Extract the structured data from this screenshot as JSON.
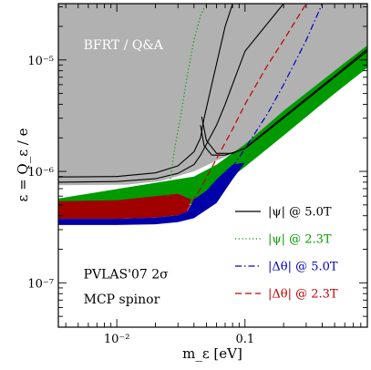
{
  "chart_data": {
    "type": "line",
    "xlabel": "m_ε [eV]",
    "ylabel": "ε = Q_ε / e",
    "xscale": "log",
    "yscale": "log",
    "xlim": [
      0.0035,
      0.9
    ],
    "ylim": [
      4e-08,
      3.2e-05
    ],
    "x_ticks": [
      {
        "value": 0.01,
        "label": "10⁻²"
      },
      {
        "value": 0.1,
        "label": "0.1"
      }
    ],
    "y_ticks": [
      {
        "value": 1e-07,
        "label": "10⁻⁷"
      },
      {
        "value": 1e-06,
        "label": "10⁻⁶"
      },
      {
        "value": 1e-05,
        "label": "10⁻⁵"
      }
    ],
    "annotations": [
      {
        "text": "BFRT / Q&A",
        "x": 0.0055,
        "y": 1.25e-05
      },
      {
        "text": "PVLAS'07 2σ",
        "x": 0.0055,
        "y": 1.1e-07
      },
      {
        "text": "MCP spinor",
        "x": 0.0055,
        "y": 6.5e-08
      }
    ],
    "colors": {
      "gray_region": "#b1b1b1",
      "green_region": "#009a00",
      "red_region": "#a00000",
      "blue_region": "#0000a8",
      "black_line": "#000000",
      "green_line": "#009a00",
      "blue_line": "#0000c0",
      "red_line": "#c00000"
    },
    "regions": [
      {
        "name": "BFRT / Q&A",
        "color": "#b1b1b1",
        "x": [
          0.0035,
          0.012,
          0.022,
          0.04,
          0.06,
          0.1,
          0.2,
          0.5,
          0.9,
          0.9,
          0.0035
        ],
        "y": [
          7.5e-07,
          7.6e-07,
          8.2e-07,
          1e-06,
          1.25e-06,
          1.6e-06,
          3e-06,
          7e-06,
          1.2e-05,
          3.2e-05,
          3.2e-05
        ]
      },
      {
        "name": "|ψ| @ 2.3T",
        "color": "#009a00",
        "x": [
          0.0035,
          0.01,
          0.02,
          0.03,
          0.04,
          0.06,
          0.1,
          0.2,
          0.5,
          0.9,
          0.9,
          0.5,
          0.2,
          0.1,
          0.06,
          0.04,
          0.0035
        ],
        "y": [
          4.4e-07,
          4.4e-07,
          4.5e-07,
          4.7e-07,
          5.2e-07,
          7e-07,
          1.1e-06,
          2.1e-06,
          5e-06,
          8.5e-06,
          1.35e-05,
          8e-06,
          3.5e-06,
          1.75e-06,
          1.15e-06,
          9e-07,
          5.7e-07
        ]
      },
      {
        "name": "|Δθ| @ 2.3T",
        "color": "#a00000",
        "x": [
          0.0035,
          0.01,
          0.02,
          0.03,
          0.035,
          0.038,
          0.03,
          0.02,
          0.01,
          0.0035
        ],
        "y": [
          3.75e-07,
          3.75e-07,
          3.85e-07,
          4.05e-07,
          4.25e-07,
          5.6e-07,
          6.3e-07,
          6e-07,
          5.5e-07,
          5.4e-07
        ]
      },
      {
        "name": "|Δθ| @ 5.0T",
        "color": "#0000a8",
        "x": [
          0.0035,
          0.01,
          0.02,
          0.03,
          0.04,
          0.06,
          0.08,
          0.1,
          0.08,
          0.06,
          0.05,
          0.04,
          0.035,
          0.03,
          0.02,
          0.01,
          0.0035
        ],
        "y": [
          3.3e-07,
          3.3e-07,
          3.35e-07,
          3.5e-07,
          3.8e-07,
          5.2e-07,
          8.5e-07,
          1.2e-06,
          1.15e-06,
          8.5e-07,
          6.7e-07,
          5.6e-07,
          4.3e-07,
          4.05e-07,
          3.85e-07,
          3.75e-07,
          3.75e-07
        ]
      }
    ],
    "series": [
      {
        "name": "|ψ| @ 5.0T",
        "style": "solid",
        "color": "#000000",
        "segments": [
          {
            "x": [
              0.0035,
              0.01,
              0.02,
              0.03,
              0.04,
              0.045,
              0.05,
              0.06,
              0.07,
              0.1,
              0.2,
              0.5,
              0.9
            ],
            "y": [
              8e-07,
              8.1e-07,
              8.6e-07,
              9.6e-07,
              1.15e-06,
              1.4e-06,
              1.75e-06,
              2.6e-06,
              4e-06,
              1.2e-05,
              3.2e-05,
              3.2e-05,
              3.2e-05
            ]
          },
          {
            "x": [
              0.0035,
              0.01,
              0.02,
              0.03,
              0.04,
              0.045,
              0.048,
              0.055,
              0.07,
              0.08
            ],
            "y": [
              8.9e-07,
              9e-07,
              9.7e-07,
              1.12e-06,
              1.5e-06,
              2e-06,
              3e-06,
              6e-06,
              2e-05,
              3.2e-05
            ]
          },
          {
            "x": [
              0.045,
              0.048,
              0.055,
              0.07,
              0.1,
              0.2,
              0.5,
              0.9
            ],
            "y": [
              2.6e-06,
              1.7e-06,
              1.4e-06,
              1.4e-06,
              1.6e-06,
              3e-06,
              7e-06,
              1.2e-05
            ]
          },
          {
            "x": [
              0.046,
              0.05,
              0.06,
              0.08,
              0.1,
              0.2,
              0.5,
              0.9
            ],
            "y": [
              3.1e-06,
              1.9e-06,
              1.45e-06,
              1.45e-06,
              1.62e-06,
              3.1e-06,
              7.2e-06,
              1.25e-05
            ]
          }
        ]
      },
      {
        "name": "|ψ| @ 2.3T",
        "style": "dotted",
        "color": "#009a00",
        "segments": [
          {
            "x": [
              0.025,
              0.026,
              0.028,
              0.032,
              0.036,
              0.04,
              0.045,
              0.05
            ],
            "y": [
              6e-07,
              8e-07,
              1.5e-06,
              3.5e-06,
              8e-06,
              1.5e-05,
              2.5e-05,
              3.2e-05
            ]
          }
        ]
      },
      {
        "name": "|Δθ| @ 5.0T",
        "style": "dashdot",
        "color": "#0000c0",
        "segments": [
          {
            "x": [
              0.06,
              0.08,
              0.1,
              0.15,
              0.2,
              0.3,
              0.4
            ],
            "y": [
              7e-07,
              1.1e-06,
              1.6e-06,
              3.3e-06,
              6e-06,
              1.5e-05,
              3.2e-05
            ]
          }
        ]
      },
      {
        "name": "|Δθ| @ 2.3T",
        "style": "dashed",
        "color": "#c00000",
        "segments": [
          {
            "x": [
              0.035,
              0.045,
              0.06,
              0.08,
              0.1,
              0.15,
              0.2,
              0.3
            ],
            "y": [
              4.5e-07,
              7e-07,
              1.3e-06,
              2.4e-06,
              4e-06,
              9e-06,
              1.5e-05,
              3.2e-05
            ]
          }
        ]
      }
    ],
    "legend": {
      "placement": "lower-right",
      "entries": [
        {
          "label": "|ψ| @ 5.0T",
          "color": "#000000",
          "style": "solid"
        },
        {
          "label": "|ψ| @ 2.3T",
          "color": "#009a00",
          "style": "dotted"
        },
        {
          "label": "|Δθ| @ 5.0T",
          "color": "#0000c0",
          "style": "dashdot"
        },
        {
          "label": "|Δθ| @ 2.3T",
          "color": "#c00000",
          "style": "dashed"
        }
      ]
    }
  }
}
